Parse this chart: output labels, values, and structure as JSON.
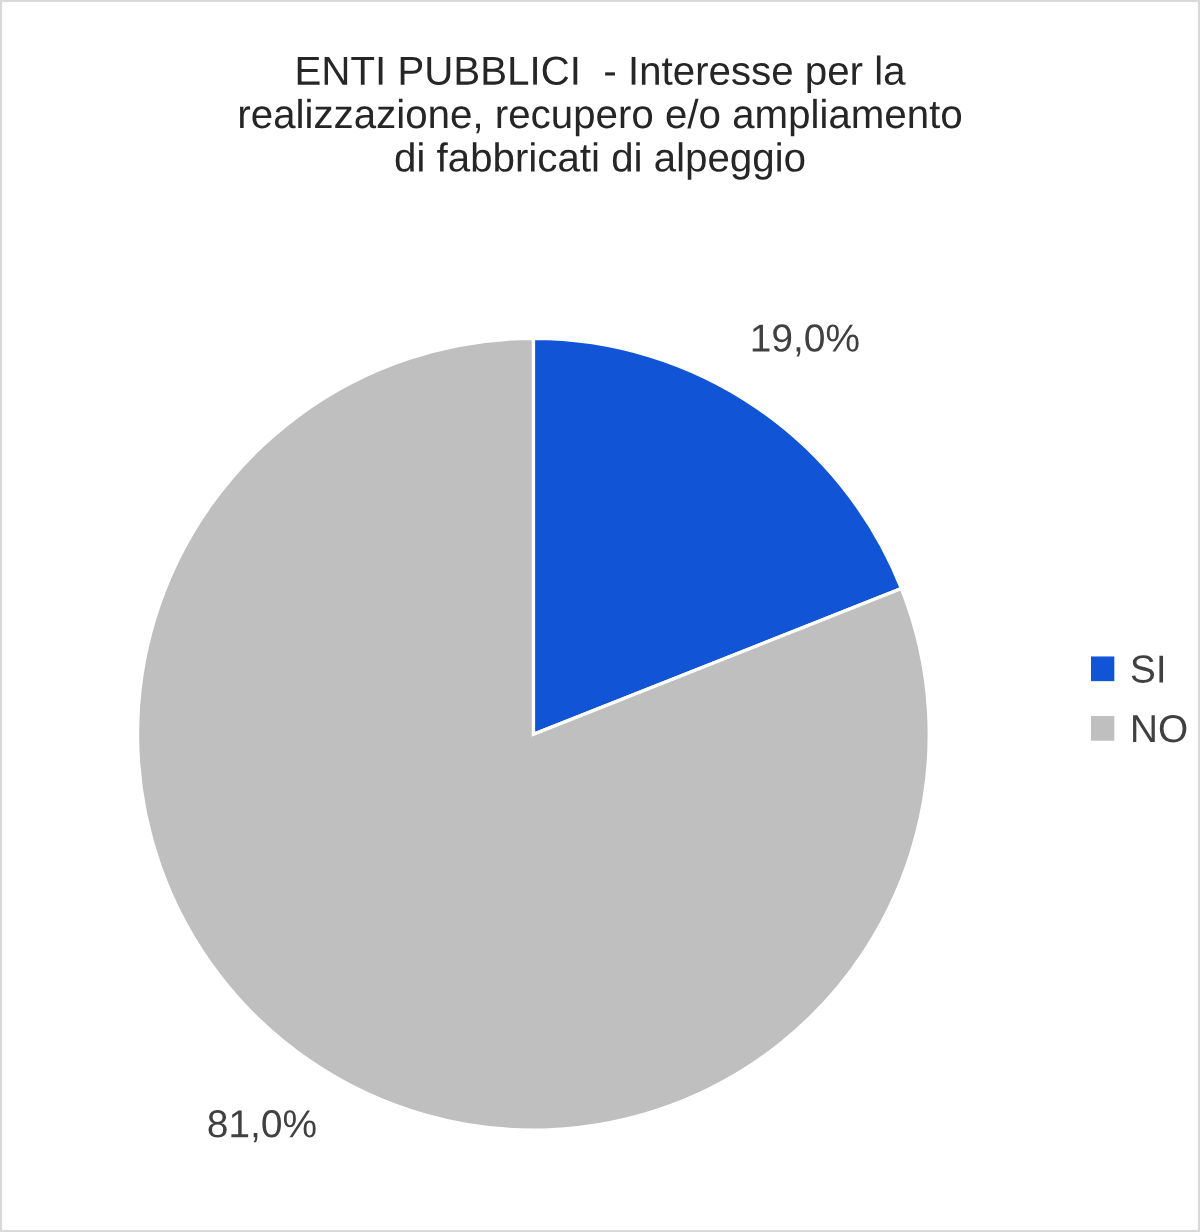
{
  "chart_data": {
    "type": "pie",
    "title": "ENTI PUBBLICI  - Interesse per la\nrealizzazione, recupero e/o ampliamento\ndi fabbricati di alpeggio",
    "categories": [
      "SI",
      "NO"
    ],
    "values": [
      19.0,
      81.0
    ],
    "value_labels": [
      "19,0%",
      "81,0%"
    ],
    "colors": [
      "#1155d6",
      "#bfbfbf"
    ],
    "legend": "right"
  }
}
